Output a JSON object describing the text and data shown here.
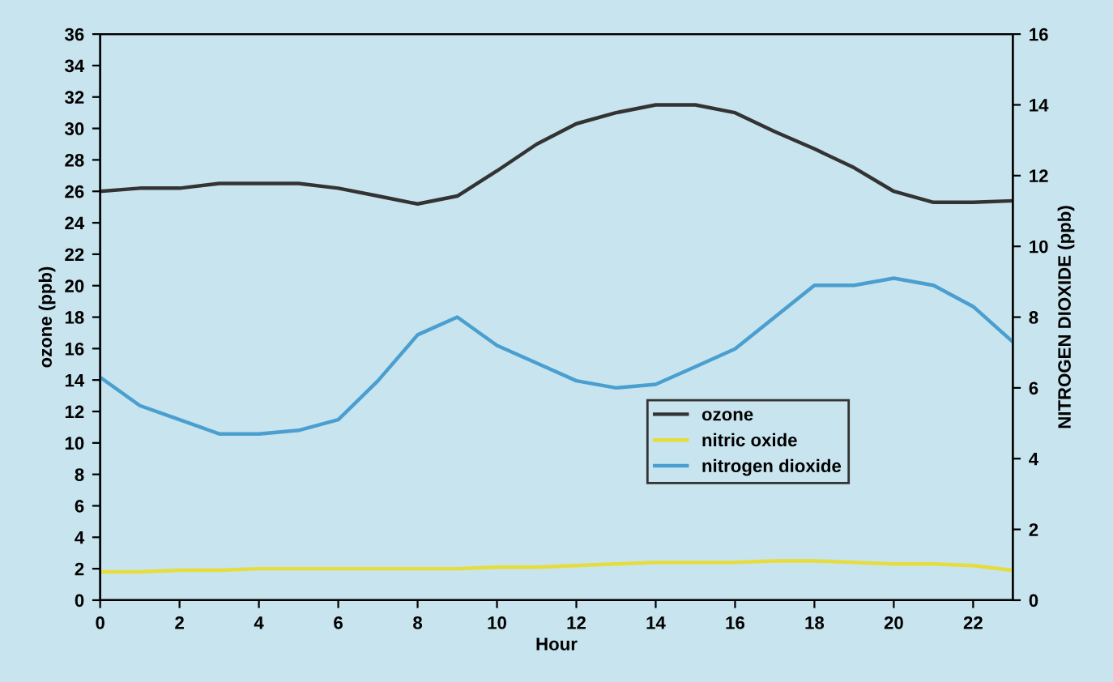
{
  "chart_data": {
    "type": "line",
    "xlabel": "Hour",
    "ylabel": "ozone (ppb)",
    "y2label": "NITROGEN DIOXIDE (ppb)",
    "x": [
      0,
      1,
      2,
      3,
      4,
      5,
      6,
      7,
      8,
      9,
      10,
      11,
      12,
      13,
      14,
      15,
      16,
      17,
      18,
      19,
      20,
      21,
      22,
      23
    ],
    "series": [
      {
        "name": "ozone",
        "color": "#333333",
        "values": [
          26.0,
          26.2,
          26.2,
          26.5,
          26.5,
          26.5,
          26.2,
          25.7,
          25.2,
          25.7,
          27.3,
          29.0,
          30.3,
          31.0,
          31.5,
          31.5,
          31.0,
          29.8,
          28.7,
          27.5,
          26.0,
          25.3,
          25.3,
          25.4
        ]
      },
      {
        "name": "nitric oxide",
        "color": "#e6dc3c",
        "values": [
          1.8,
          1.8,
          1.9,
          1.9,
          2.0,
          2.0,
          2.0,
          2.0,
          2.0,
          2.0,
          2.1,
          2.1,
          2.2,
          2.3,
          2.4,
          2.4,
          2.4,
          2.5,
          2.5,
          2.4,
          2.3,
          2.3,
          2.2,
          1.9
        ]
      },
      {
        "name": "nitrogen dioxide",
        "color": "#4a9fd0",
        "axis": "y2",
        "values": [
          6.3,
          5.5,
          5.1,
          4.7,
          4.7,
          4.8,
          5.1,
          6.2,
          7.5,
          8.0,
          7.2,
          6.7,
          6.2,
          6.0,
          6.1,
          6.6,
          7.1,
          8.0,
          8.9,
          8.9,
          9.1,
          8.9,
          8.3,
          7.3
        ]
      }
    ],
    "xlim": [
      0,
      23
    ],
    "xticks": [
      0,
      2,
      4,
      6,
      8,
      10,
      12,
      14,
      16,
      18,
      20,
      22
    ],
    "ylim": [
      0,
      36
    ],
    "yticks": [
      0,
      2,
      4,
      6,
      8,
      10,
      12,
      14,
      16,
      18,
      20,
      22,
      24,
      26,
      28,
      30,
      32,
      34,
      36
    ],
    "y2lim": [
      0,
      16
    ],
    "y2ticks": [
      0,
      2,
      4,
      6,
      8,
      10,
      12,
      14,
      16
    ],
    "grid": false,
    "legend": "right",
    "marker": "none",
    "line_style": "solid"
  }
}
